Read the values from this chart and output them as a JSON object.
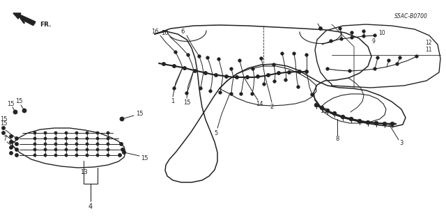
{
  "bg_color": "#ffffff",
  "line_color": "#222222",
  "diagram_code": "S5AC-B0700"
}
